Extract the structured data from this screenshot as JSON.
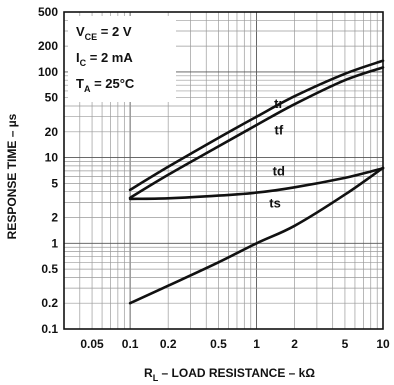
{
  "chart_data": {
    "type": "line",
    "title": "",
    "xlabel_parts": {
      "main": "R",
      "sub": "L",
      "rest": " – LOAD RESISTANCE – kΩ"
    },
    "ylabel": "RESPONSE TIME – µs",
    "xscale": "log",
    "yscale": "log",
    "xlim": [
      0.03,
      10
    ],
    "ylim": [
      0.1,
      500
    ],
    "grid": true,
    "x_ticks": [
      "0.05",
      "0.1",
      "0.2",
      "0.5",
      "1",
      "2",
      "5",
      "10"
    ],
    "y_ticks": [
      "0.1",
      "0.2",
      "0.5",
      "1",
      "2",
      "5",
      "10",
      "20",
      "50",
      "100",
      "200",
      "500"
    ],
    "conditions": [
      {
        "main": "V",
        "sub": "CE",
        "rest": " = 2 V"
      },
      {
        "main": "I",
        "sub": "C",
        "rest": " = 2 mA"
      },
      {
        "main": "T",
        "sub": "A",
        "rest": " = 25°C"
      }
    ],
    "series": [
      {
        "name": "tr",
        "x": [
          0.1,
          0.2,
          0.5,
          1,
          2,
          5,
          10
        ],
        "y": [
          4.2,
          7.8,
          17,
          30,
          52,
          95,
          135
        ]
      },
      {
        "name": "tf",
        "x": [
          0.1,
          0.2,
          0.5,
          1,
          2,
          5,
          10
        ],
        "y": [
          3.4,
          6.3,
          13.5,
          24,
          42,
          80,
          113
        ]
      },
      {
        "name": "td",
        "x": [
          0.1,
          0.2,
          0.5,
          1,
          2,
          5,
          10
        ],
        "y": [
          3.3,
          3.35,
          3.6,
          3.9,
          4.5,
          5.8,
          7.5
        ]
      },
      {
        "name": "ts",
        "x": [
          0.1,
          0.2,
          0.5,
          1,
          2,
          5,
          10
        ],
        "y": [
          0.2,
          0.32,
          0.6,
          1.0,
          1.6,
          3.7,
          7.6
        ]
      }
    ]
  }
}
